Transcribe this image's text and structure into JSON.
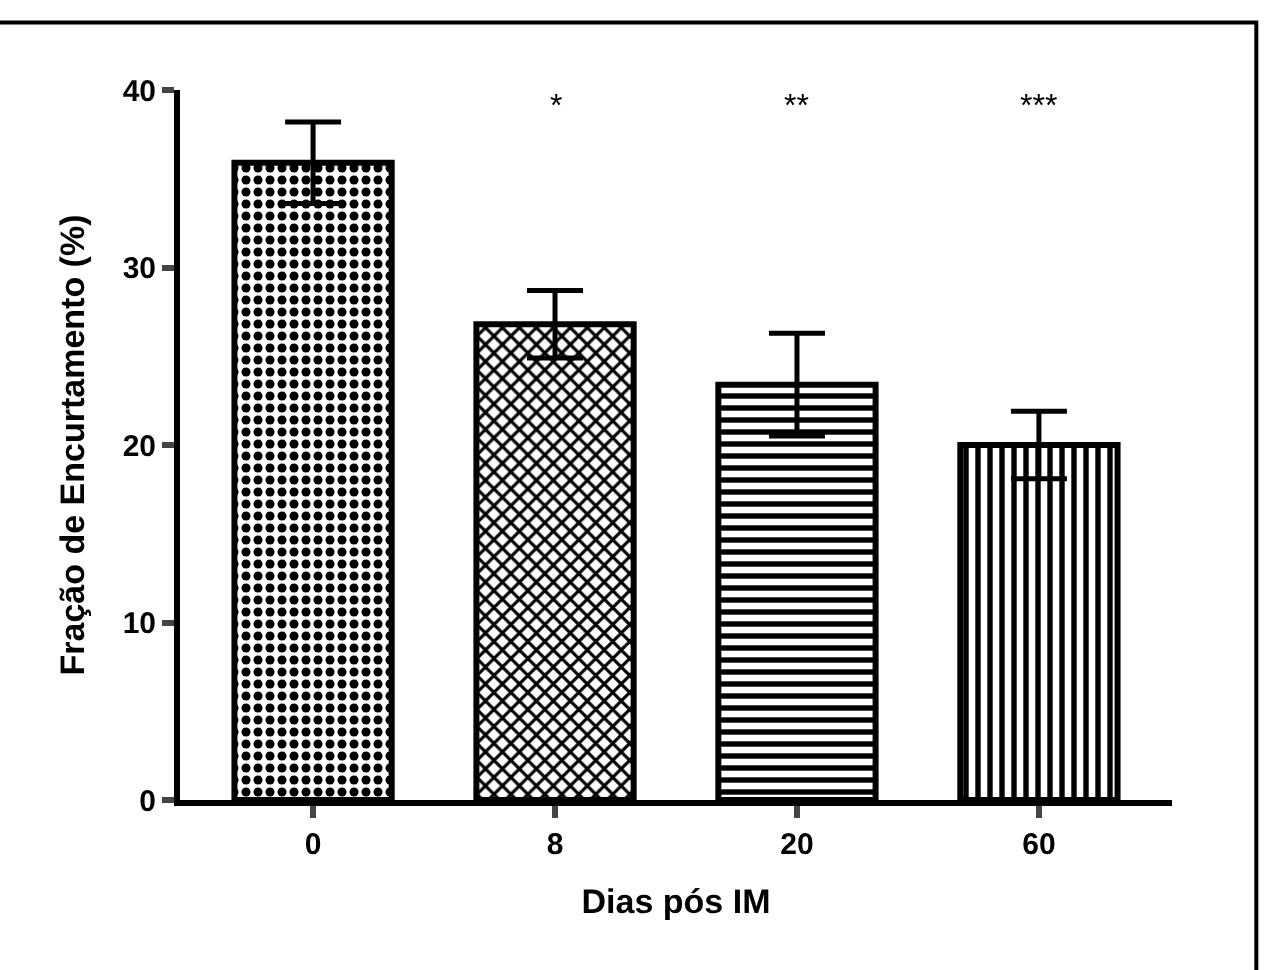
{
  "chart_data": {
    "type": "bar",
    "xlabel": "Dias pós IM",
    "ylabel": "Fração de Encurtamento (%)",
    "categories": [
      "0",
      "8",
      "20",
      "60"
    ],
    "values": [
      35.9,
      26.8,
      23.4,
      20.0
    ],
    "errors": [
      2.3,
      1.9,
      2.9,
      1.9
    ],
    "color": "#000000",
    "ylim": [
      0,
      40
    ],
    "yticks": [
      0,
      10,
      20,
      30,
      40
    ],
    "annotations": [
      "*",
      "**",
      "***"
    ]
  }
}
